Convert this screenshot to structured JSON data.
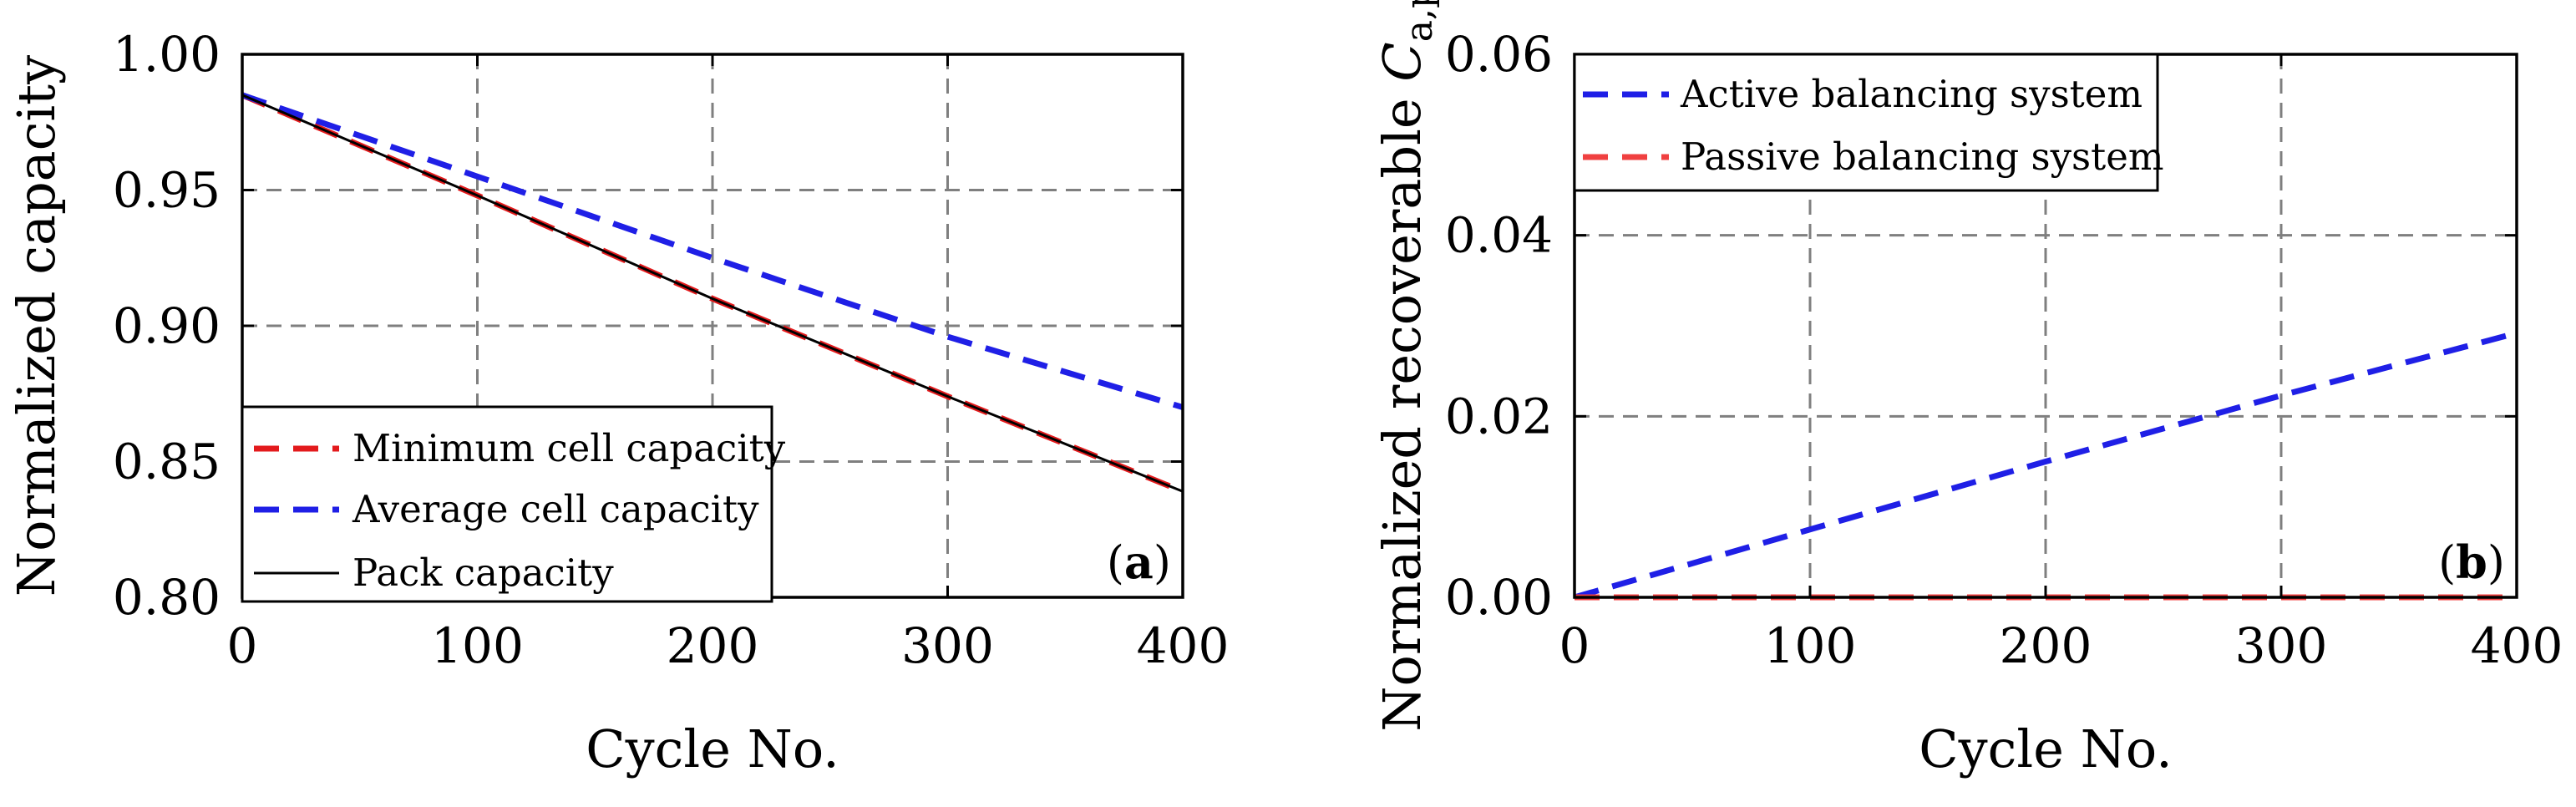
{
  "chart_data": [
    {
      "type": "line",
      "panel_label": "a",
      "xlabel": "Cycle No.",
      "ylabel": "Normalized capacity",
      "xlim": [
        0,
        400
      ],
      "ylim": [
        0.8,
        1.0
      ],
      "x_ticks": [
        0,
        100,
        200,
        300,
        400
      ],
      "y_ticks": [
        0.8,
        0.85,
        0.9,
        0.95,
        1.0
      ],
      "x_tick_labels": [
        "0",
        "100",
        "200",
        "300",
        "400"
      ],
      "y_tick_labels": [
        "0.80",
        "0.85",
        "0.90",
        "0.95",
        "1.00"
      ],
      "grid": true,
      "legend_position": "bottom-left",
      "series": [
        {
          "name": "Minimum cell capacity",
          "color": "#e31a1c",
          "style": "dashed",
          "x": [
            0,
            100,
            200,
            300,
            400
          ],
          "values": [
            0.985,
            0.948,
            0.91,
            0.874,
            0.839
          ]
        },
        {
          "name": "Average cell capacity",
          "color": "#1f1fe6",
          "style": "dashed",
          "x": [
            0,
            100,
            200,
            300,
            400
          ],
          "values": [
            0.985,
            0.955,
            0.925,
            0.896,
            0.87
          ]
        },
        {
          "name": "Pack capacity",
          "color": "#000000",
          "style": "solid",
          "x": [
            0,
            100,
            200,
            300,
            400
          ],
          "values": [
            0.985,
            0.948,
            0.91,
            0.874,
            0.839
          ]
        }
      ]
    },
    {
      "type": "line",
      "panel_label": "b",
      "xlabel": "Cycle No.",
      "ylabel": "Normalized recoverable C",
      "ylabel_subscript": "a,pack",
      "xlim": [
        0,
        400
      ],
      "ylim": [
        0.0,
        0.06
      ],
      "x_ticks": [
        0,
        100,
        200,
        300,
        400
      ],
      "y_ticks": [
        0.0,
        0.02,
        0.04,
        0.06
      ],
      "x_tick_labels": [
        "0",
        "100",
        "200",
        "300",
        "400"
      ],
      "y_tick_labels": [
        "0.00",
        "0.02",
        "0.04",
        "0.06"
      ],
      "grid": true,
      "legend_position": "top-left",
      "series": [
        {
          "name": "Active balancing system",
          "color": "#1f1fe6",
          "style": "dashed",
          "x": [
            0,
            100,
            200,
            300,
            400
          ],
          "values": [
            0.0,
            0.0075,
            0.015,
            0.0223,
            0.0292
          ]
        },
        {
          "name": "Passive balancing system",
          "color": "#f04040",
          "style": "dashed",
          "x": [
            0,
            100,
            200,
            300,
            400
          ],
          "values": [
            0.0,
            0.0,
            0.0,
            0.0,
            0.0
          ]
        }
      ]
    }
  ]
}
